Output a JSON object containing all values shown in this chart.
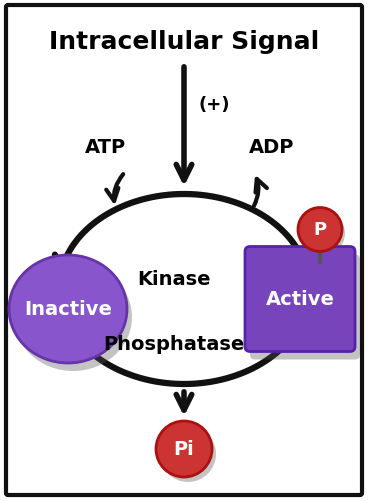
{
  "title": "Intracellular Signal",
  "title_fontsize": 18,
  "title_fontweight": "bold",
  "background_color": "#ffffff",
  "border_color": "#111111",
  "arrow_color": "#111111",
  "arrow_lw": 4.5,
  "inactive_label": "Inactive",
  "active_label": "Active",
  "kinase_label": "Kinase",
  "phosphatase_label": "Phosphatase",
  "atp_label": "ATP",
  "adp_label": "ADP",
  "plus_label": "(+)",
  "p_label": "P",
  "pi_label": "Pi",
  "purple_circle_color": "#8855cc",
  "purple_circle_edge": "#6633aa",
  "purple_box_color": "#7744bb",
  "purple_box_edge": "#5522aa",
  "red_circle_color": "#cc3333",
  "red_circle_edge": "#aa1111",
  "label_fontsize": 14,
  "shape_label_fontsize": 14
}
